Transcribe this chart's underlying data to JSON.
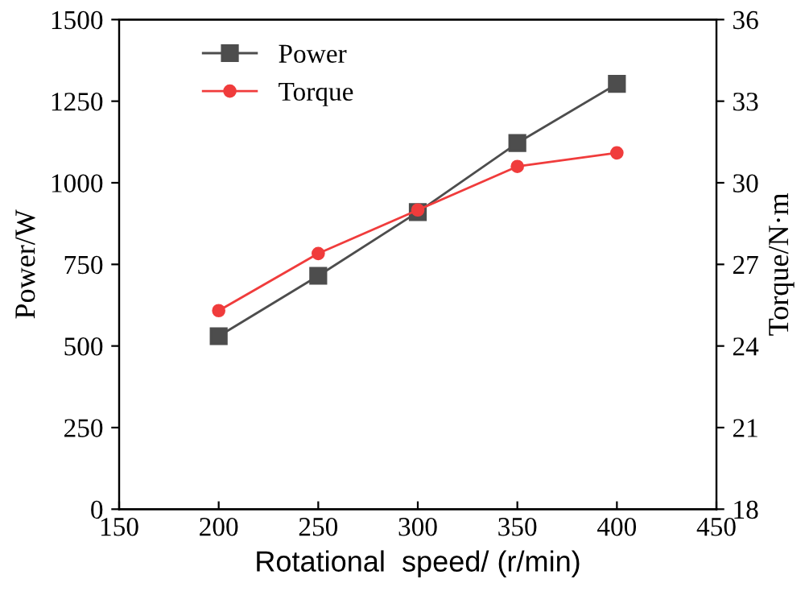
{
  "chart_data": {
    "type": "line",
    "xlabel": "Rotational  speed/ (r/min)",
    "ylabel": "Power/W",
    "y2label": "Torque/N·m",
    "x": [
      200,
      250,
      300,
      350,
      400
    ],
    "series": [
      {
        "name": "Power",
        "color": "#4d4d4d",
        "marker": "square",
        "values": [
          530,
          715,
          910,
          1122,
          1303
        ]
      },
      {
        "name": "Torque",
        "color": "#f03c3c",
        "marker": "circle",
        "axis": "y2",
        "values": [
          25.3,
          27.4,
          29.0,
          30.6,
          31.1
        ]
      }
    ],
    "xlim": [
      150,
      450
    ],
    "xticks": [
      150,
      200,
      250,
      300,
      350,
      400,
      450
    ],
    "ylim": [
      0,
      1500
    ],
    "yticks": [
      0,
      250,
      500,
      750,
      1000,
      1250,
      1500
    ],
    "y2lim": [
      18,
      36
    ],
    "y2ticks": [
      18,
      21,
      24,
      27,
      30,
      33,
      36
    ],
    "legend": "top left",
    "grid": false,
    "line_style": "solid"
  }
}
